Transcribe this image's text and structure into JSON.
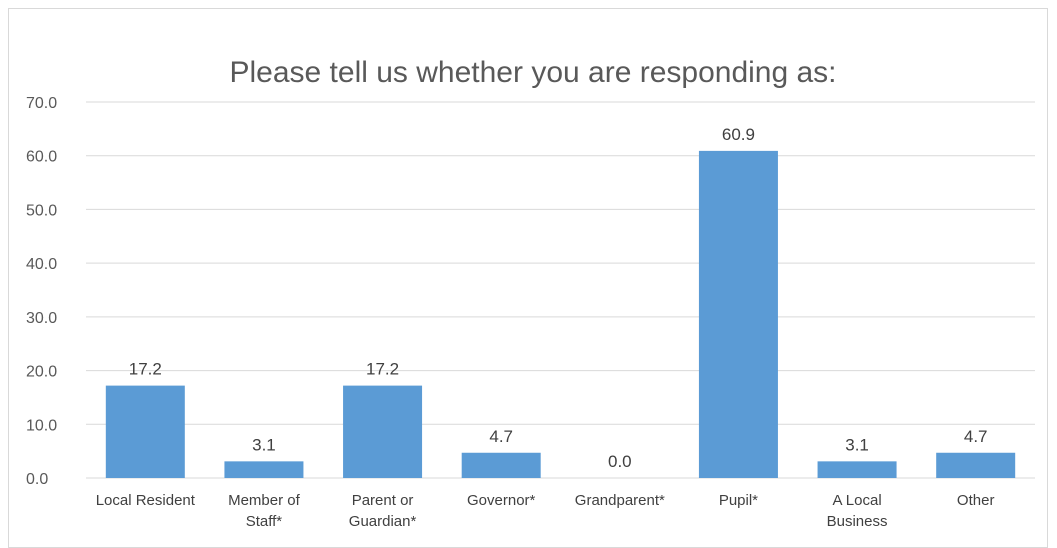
{
  "chart_data": {
    "type": "bar",
    "title": "Please tell us whether you are responding as:",
    "categories": [
      [
        "Local Resident"
      ],
      [
        "Member of",
        "Staff*"
      ],
      [
        "Parent or",
        "Guardian*"
      ],
      [
        "Governor*"
      ],
      [
        "Grandparent*"
      ],
      [
        "Pupil*"
      ],
      [
        "A Local",
        "Business"
      ],
      [
        "Other"
      ]
    ],
    "values": [
      17.2,
      3.1,
      17.2,
      4.7,
      0.0,
      60.9,
      3.1,
      4.7
    ],
    "value_labels": [
      "17.2",
      "3.1",
      "17.2",
      "4.7",
      "0.0",
      "60.9",
      "3.1",
      "4.7"
    ],
    "yticks": [
      "0.0",
      "10.0",
      "20.0",
      "30.0",
      "40.0",
      "50.0",
      "60.0",
      "70.0"
    ],
    "ylim": [
      0,
      70
    ],
    "grid": true,
    "bar_color": "#5b9bd5",
    "grid_color": "#d9d9d9"
  }
}
